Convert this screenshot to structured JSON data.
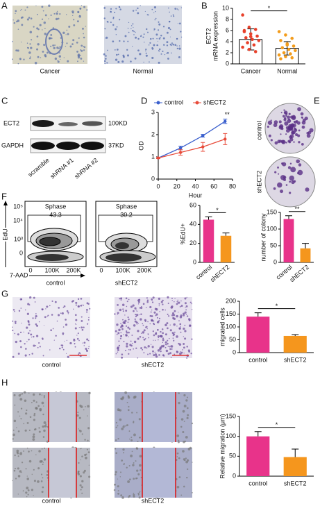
{
  "figure": {
    "panel_labels": [
      "A",
      "B",
      "C",
      "D",
      "E",
      "F",
      "G",
      "H"
    ],
    "panel_a": {
      "captions": [
        "Cancer",
        "Normal"
      ]
    },
    "panel_c": {
      "rows": [
        {
          "protein": "ECT2",
          "size": "100KD"
        },
        {
          "protein": "GAPDH",
          "size": "37KD"
        }
      ],
      "lanes": [
        "scramble",
        "shRNA #1",
        "shRNA #2"
      ]
    },
    "panel_e": {
      "rows": [
        "control",
        "shECT2"
      ]
    },
    "panel_f": {
      "ylabel": "EdU",
      "xlabel": "7-AAD",
      "yticks": [
        "10⁵",
        "10⁴",
        "10³",
        "0"
      ],
      "xticks": [
        "0",
        "100K",
        "200K"
      ],
      "gates": [
        {
          "label": "Sphase",
          "value": 43.3,
          "caption": "control"
        },
        {
          "label": "Sphase",
          "value": 30.2,
          "caption": "shECT2"
        }
      ]
    },
    "panel_g": {
      "captions": [
        "control",
        "shECT2"
      ]
    },
    "panel_h": {
      "captions": [
        "control",
        "shECT2"
      ]
    }
  },
  "chart_data": [
    {
      "type": "bar",
      "categories": [
        "Cancer",
        "Normal"
      ],
      "values": [
        4.4,
        2.8
      ],
      "errors": [
        1.9,
        1.2
      ],
      "points": [
        [
          8.8,
          6.6,
          6.2,
          5.8,
          5.4,
          5.0,
          4.7,
          4.4,
          4.2,
          3.8,
          3.4,
          3.0,
          2.6,
          2.2,
          6.0,
          4.9
        ],
        [
          5.8,
          5.2,
          4.6,
          4.2,
          3.6,
          3.2,
          2.9,
          2.6,
          2.4,
          2.0,
          1.8,
          1.6,
          1.3,
          1.1,
          0.9,
          3.4
        ]
      ],
      "colors": [
        "#ffffff",
        "#ffffff"
      ],
      "edgecolor": "#000000",
      "point_colors": [
        "#e8402a",
        "#f39c1c"
      ],
      "ylabel": [
        "ECT2",
        "mRNA expression"
      ],
      "ylim": [
        0,
        10
      ],
      "yticks": [
        0,
        2,
        4,
        6,
        8,
        10
      ],
      "annotation": "*"
    },
    {
      "type": "line",
      "x": [
        0,
        24,
        48,
        72
      ],
      "series": [
        {
          "name": "control",
          "color": "#3a5fcd",
          "values": [
            0.95,
            1.4,
            1.95,
            2.6
          ],
          "errors": [
            0.03,
            0.08,
            0.06,
            0.1
          ]
        },
        {
          "name": "shECT2",
          "color": "#e84b3a",
          "values": [
            0.95,
            1.2,
            1.45,
            1.8
          ],
          "errors": [
            0.03,
            0.12,
            0.2,
            0.25
          ]
        }
      ],
      "xlabel": "Hour",
      "ylabel": "OD",
      "xlim": [
        0,
        80
      ],
      "xticks": [
        0,
        20,
        40,
        60,
        80
      ],
      "ylim": [
        0,
        3
      ],
      "yticks": [
        0,
        1,
        2,
        3
      ],
      "annotation": "**"
    },
    {
      "type": "bar",
      "categories": [
        "control",
        "shECT2"
      ],
      "values": [
        45,
        28
      ],
      "errors": [
        3,
        3
      ],
      "colors": [
        "#e8338a",
        "#f5961d"
      ],
      "ylabel": "%EdU+",
      "ylim": [
        0,
        60
      ],
      "yticks": [
        0,
        20,
        40,
        60
      ],
      "annotation": "*"
    },
    {
      "type": "bar",
      "categories": [
        "control",
        "shECT2"
      ],
      "values": [
        130,
        42
      ],
      "errors": [
        10,
        15
      ],
      "colors": [
        "#e8338a",
        "#f5961d"
      ],
      "ylabel": "number of colony",
      "ylim": [
        0,
        150
      ],
      "yticks": [
        0,
        50,
        100,
        150
      ],
      "annotation": "**"
    },
    {
      "type": "bar",
      "categories": [
        "control",
        "shECT2"
      ],
      "values": [
        140,
        65
      ],
      "errors": [
        15,
        5
      ],
      "colors": [
        "#e8338a",
        "#f5961d"
      ],
      "ylabel": "migrated cells",
      "ylim": [
        0,
        200
      ],
      "yticks": [
        0,
        50,
        100,
        150,
        200
      ],
      "annotation": "*"
    },
    {
      "type": "bar",
      "categories": [
        "control",
        "shECT2"
      ],
      "values": [
        100,
        48
      ],
      "errors": [
        12,
        20
      ],
      "colors": [
        "#e8338a",
        "#f5961d"
      ],
      "ylabel": "Relative migration (μm)",
      "ylim": [
        0,
        150
      ],
      "yticks": [
        0,
        50,
        100,
        150
      ],
      "annotation": "*"
    }
  ]
}
